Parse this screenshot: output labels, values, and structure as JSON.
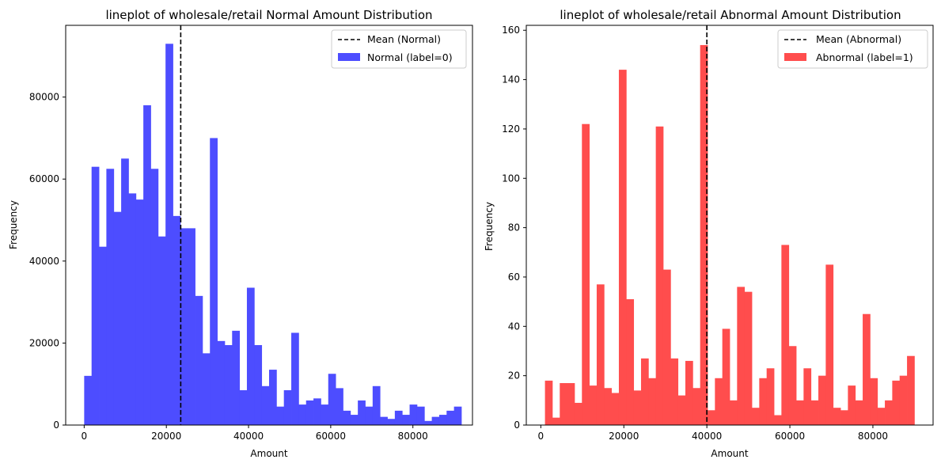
{
  "chart_data": [
    {
      "type": "bar",
      "title": "lineplot of wholesale/retail Normal Amount Distribution",
      "xlabel": "Amount",
      "ylabel": "Frequency",
      "xlim": [
        -4500,
        94500
      ],
      "ylim": [
        0,
        97500
      ],
      "xticks": [
        0,
        20000,
        40000,
        60000,
        80000
      ],
      "yticks": [
        0,
        20000,
        40000,
        60000,
        80000
      ],
      "bin_start": 0,
      "bin_width": 1800,
      "values": [
        12000,
        63000,
        43500,
        62500,
        52000,
        65000,
        56500,
        55000,
        78000,
        62500,
        46000,
        93000,
        51000,
        48000,
        48000,
        31500,
        17500,
        70000,
        20500,
        19500,
        23000,
        8500,
        33500,
        19500,
        9500,
        13500,
        4500,
        8500,
        22500,
        5000,
        6000,
        6500,
        5000,
        12500,
        9000,
        3500,
        2500,
        6000,
        4500,
        9500,
        2000,
        1500,
        3500,
        2500,
        5000,
        4500,
        1000,
        2000,
        2500,
        3500,
        4500
      ],
      "bar_color": "#4d4dff",
      "mean": 23500,
      "mean_color": "#000000",
      "legend_position": "top-right",
      "legend": [
        {
          "name": "Mean (Normal)",
          "kind": "dashed-line"
        },
        {
          "name": "Normal (label=0)",
          "kind": "patch"
        }
      ]
    },
    {
      "type": "bar",
      "title": "lineplot of wholesale/retail Abnormal Amount Distribution",
      "xlabel": "Amount",
      "ylabel": "Frequency",
      "xlim": [
        -3500,
        94500
      ],
      "ylim": [
        0,
        162
      ],
      "xticks": [
        0,
        20000,
        40000,
        60000,
        80000
      ],
      "yticks": [
        0,
        20,
        40,
        60,
        80,
        100,
        120,
        140,
        160
      ],
      "bin_start": 1000,
      "bin_width": 1780,
      "values": [
        18,
        3,
        17,
        17,
        9,
        122,
        16,
        57,
        15,
        13,
        144,
        51,
        14,
        27,
        19,
        121,
        63,
        27,
        12,
        26,
        15,
        154,
        6,
        19,
        39,
        10,
        56,
        54,
        7,
        19,
        23,
        4,
        73,
        32,
        10,
        23,
        10,
        20,
        65,
        7,
        6,
        16,
        10,
        45,
        19,
        7,
        10,
        18,
        20,
        28
      ],
      "bar_color": "#ff4d4d",
      "mean": 40000,
      "mean_color": "#000000",
      "legend_position": "top-right",
      "legend": [
        {
          "name": "Mean (Abnormal)",
          "kind": "dashed-line"
        },
        {
          "name": "Abnormal (label=1)",
          "kind": "patch"
        }
      ]
    }
  ]
}
